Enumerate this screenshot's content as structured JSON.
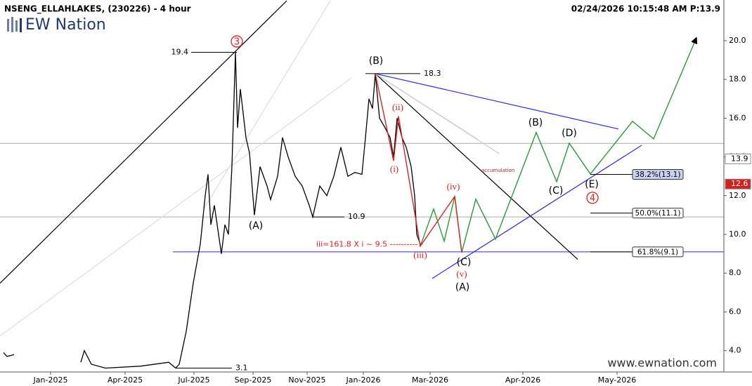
{
  "chart_data": {
    "type": "line",
    "title": "NSENG_ELLAHLAKES, (230226) - 4 hour",
    "timestamp": "02/24/2026 10:15:48 AM P:13.9",
    "logo": "EW Nation",
    "watermark": "www.ewnation.com",
    "color": "#000000",
    "x": [
      1,
      2,
      4,
      12,
      23,
      24,
      26,
      30,
      40,
      48,
      50,
      51,
      53,
      55,
      57,
      58.4,
      59.2,
      60,
      61,
      63,
      64,
      65,
      66,
      67,
      67.6,
      68.4,
      70,
      71,
      72.4,
      74,
      76,
      77,
      79,
      80.4,
      82,
      84,
      86,
      88,
      89,
      91,
      93,
      95,
      97,
      99,
      101,
      103,
      104,
      105,
      106,
      106.8,
      108,
      109.6,
      111,
      112,
      113,
      114.4,
      115.6,
      117,
      118,
      118.6,
      119.6
    ],
    "values": [
      3.9,
      3.7,
      3.8,
      null,
      3.4,
      4.0,
      3.3,
      3.1,
      3.2,
      3.4,
      3.1,
      3.3,
      5.0,
      7.5,
      9.5,
      12.0,
      13.1,
      10.5,
      11.5,
      9.0,
      10.5,
      10.0,
      13.5,
      19.4,
      15.5,
      17.5,
      15.0,
      14.2,
      11.0,
      13.5,
      12.5,
      11.8,
      13.0,
      15.0,
      14.0,
      13.0,
      12.5,
      11.5,
      10.9,
      12.5,
      12.0,
      13.0,
      14.5,
      13.0,
      13.2,
      13.1,
      15.0,
      17.0,
      16.5,
      18.3,
      16.0,
      15.5,
      15.0,
      14.0,
      16.0,
      15.0,
      14.5,
      13.5,
      12.0,
      10.0,
      9.5
    ],
    "xlim": [
      0,
      206
    ],
    "ylim": [
      2.9,
      22.1
    ],
    "xticks": [
      {
        "value": 14.4,
        "label": "Jan-2025"
      },
      {
        "value": 35.6,
        "label": "Apr-2025"
      },
      {
        "value": 55.2,
        "label": "Jul-2025"
      },
      {
        "value": 72,
        "label": "Sep-2025"
      },
      {
        "value": 87.4,
        "label": "Nov-2025"
      },
      {
        "value": 103.4,
        "label": "Jan-2026"
      },
      {
        "value": 122.4,
        "label": "Mar-2026"
      },
      {
        "value": 148.8,
        "label": "Apr-2026"
      },
      {
        "value": 175.6,
        "label": "May-2026"
      }
    ],
    "yticks": [
      {
        "value": 4,
        "label": "4.0"
      },
      {
        "value": 6,
        "label": "6.0"
      },
      {
        "value": 8,
        "label": "8.0"
      },
      {
        "value": 10,
        "label": "10.0"
      },
      {
        "value": 12,
        "label": "12.0"
      },
      {
        "value": 14,
        "label": "14.0"
      },
      {
        "value": 16,
        "label": "16.0"
      },
      {
        "value": 18,
        "label": "18.0"
      },
      {
        "value": 20,
        "label": "20.0"
      }
    ],
    "grid": false,
    "projections": [
      {
        "color": "#2a9a3a",
        "x": [
          119.6,
          123.4,
          126.4,
          129.4,
          131.4,
          135.4,
          141,
          152.6,
          158.4,
          162,
          168,
          180,
          186,
          198
        ],
        "values": [
          9.39,
          11.31,
          9.65,
          11.96,
          9.07,
          11.82,
          9.76,
          15.26,
          12.72,
          14.71,
          13.12,
          15.84,
          14.93,
          20.07
        ]
      },
      {
        "color": "#e02020",
        "x": [
          106.8,
          112,
          113.4,
          119.6,
          129.4,
          131.4
        ],
        "values": [
          18.3,
          13.8,
          16.1,
          9.39,
          11.96,
          9.07
        ]
      }
    ],
    "lines": [
      {
        "color": "#000000",
        "x": [
          0,
          81.6
        ],
        "values": [
          7.48,
          22.06
        ]
      },
      {
        "color": "#000000",
        "x": [
          106.8,
          164.4
        ],
        "values": [
          18.3,
          8.71
        ]
      },
      {
        "color": "#2a2ae0",
        "x": [
          106.8,
          176
        ],
        "values": [
          18.3,
          15.44
        ]
      },
      {
        "color": "#2a2ae0",
        "x": [
          123,
          182.6
        ],
        "values": [
          7.73,
          14.6
        ]
      },
      {
        "color": "#dddddd",
        "x": [
          58,
          94
        ],
        "values": [
          11.31,
          22.06
        ]
      },
      {
        "color": "#dddddd",
        "x": [
          0,
          100
        ],
        "values": [
          4.76,
          18.08
        ]
      },
      {
        "color": "#cccccc",
        "x": [
          106.8,
          142
        ],
        "values": [
          18.3,
          14.17
        ]
      },
      {
        "color": "#cccccc",
        "x": [
          106.8,
          136
        ],
        "values": [
          18.3,
          14.9
        ]
      }
    ],
    "hlines": [
      {
        "value": 9.1,
        "x0": 49.2,
        "color": "#2a2ae0"
      },
      {
        "value": 14.7,
        "x0": 0,
        "color": "#aaaaaa"
      },
      {
        "value": 10.9,
        "x0": 0,
        "color": "#aaaaaa"
      }
    ],
    "levels": [
      {
        "value": 19.4,
        "x0": 54.4,
        "x1": 67.4,
        "label_side": "left"
      },
      {
        "value": 10.9,
        "x0": 89,
        "x1": 98,
        "label_side": "right"
      },
      {
        "value": 18.3,
        "x0": 104,
        "x1": 119.6,
        "label_side": "right"
      },
      {
        "value": 3.1,
        "x0": 50,
        "x1": 66,
        "label_side": "right"
      }
    ],
    "fibs": [
      {
        "label": "38.2%(13.1)",
        "value": 13.1,
        "x0": 168,
        "color": "#c8d2f0"
      },
      {
        "label": "50.0%(11.1)",
        "value": 11.1,
        "x0": 168,
        "color": "#ffffff"
      },
      {
        "label": "61.8%(9.1)",
        "value": 9.1,
        "x0": 168,
        "color": "#ffffff"
      }
    ],
    "price_badges": [
      {
        "value": 13.9,
        "color": "#ffffff",
        "text_color": "#000000"
      },
      {
        "value": 12.6,
        "color": "#d02020",
        "text_color": "#ffffff"
      }
    ],
    "circled_labels": [
      {
        "text": "3",
        "x": 67.4,
        "y": 19.96,
        "color": "#e02020"
      },
      {
        "text": "4",
        "x": 168.6,
        "y": 11.89,
        "color": "#e02020"
      }
    ],
    "wave_labels": [
      {
        "text": "(B)",
        "x": 107,
        "y": 18.95,
        "color": "#000000"
      },
      {
        "text": "(A)",
        "x": 72.8,
        "y": 10.44,
        "color": "#000000"
      },
      {
        "text": "(i)",
        "x": 112.2,
        "y": 13.34,
        "color": "#e02020"
      },
      {
        "text": "(ii)",
        "x": 113.2,
        "y": 16.52,
        "color": "#e02020"
      },
      {
        "text": "(iii)",
        "x": 119.6,
        "y": 8.89,
        "color": "#e02020"
      },
      {
        "text": "(iv)",
        "x": 129,
        "y": 12.43,
        "color": "#e02020"
      },
      {
        "text": "(v)",
        "x": 131.4,
        "y": 7.91,
        "color": "#e02020"
      },
      {
        "text": "(C)",
        "x": 132,
        "y": 8.56,
        "color": "#000000"
      },
      {
        "text": "(A)",
        "x": 131.6,
        "y": 7.26,
        "color": "#000000"
      },
      {
        "text": "(B)",
        "x": 152.4,
        "y": 15.76,
        "color": "#000000"
      },
      {
        "text": "(D)",
        "x": 162,
        "y": 15.22,
        "color": "#000000"
      },
      {
        "text": "(C)",
        "x": 158.2,
        "y": 12.25,
        "color": "#000000"
      },
      {
        "text": "(E)",
        "x": 168.4,
        "y": 12.58,
        "color": "#000000"
      }
    ],
    "notes": [
      {
        "text": "iii=161.8 X i ~ 9.5 ----------",
        "x": 90,
        "y": 9.47,
        "color": "#e02020",
        "size": 11
      },
      {
        "text": "accumulation",
        "x": 137,
        "y": 13.3,
        "color": "#c02020",
        "size": 7
      }
    ]
  }
}
